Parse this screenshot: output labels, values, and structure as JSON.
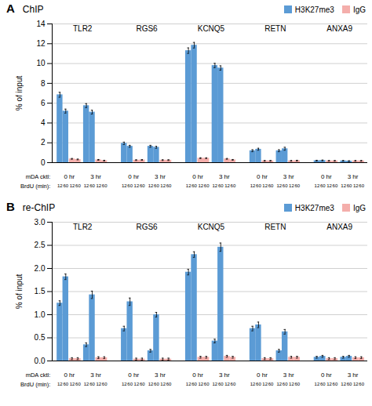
{
  "chart_data": [
    {
      "type": "bar",
      "title": "ChIP",
      "annotations": [
        "A",
        "mDA cktl:",
        "BrdU (min):"
      ],
      "ylabel": "% of input",
      "categories": [
        "TLR2",
        "RGS6",
        "KCNQ5",
        "RETN",
        "ANXA9"
      ],
      "groups": [
        "0 hr",
        "3 hr"
      ],
      "subcategories": [
        "12",
        "60"
      ],
      "series": [
        {
          "name": "H3K27me3",
          "color": "#5B9BD5",
          "values": [
            [
              6.85,
              5.2,
              5.75,
              5.1
            ],
            [
              1.95,
              1.65,
              1.65,
              1.55
            ],
            [
              11.3,
              11.85,
              9.8,
              9.55
            ],
            [
              1.2,
              1.35,
              1.2,
              1.4
            ],
            [
              0.2,
              0.22,
              0.18,
              0.15
            ]
          ],
          "errors": [
            [
              0.25,
              0.2,
              0.2,
              0.2
            ],
            [
              0.12,
              0.1,
              0.1,
              0.1
            ],
            [
              0.28,
              0.28,
              0.22,
              0.22
            ],
            [
              0.1,
              0.1,
              0.1,
              0.15
            ],
            [
              0.04,
              0.04,
              0.04,
              0.04
            ]
          ]
        },
        {
          "name": "IgG",
          "color": "#F4AEAB",
          "values": [
            [
              0.38,
              0.32,
              0.28,
              0.2
            ],
            [
              0.25,
              0.27,
              0.25,
              0.25
            ],
            [
              0.45,
              0.45,
              0.38,
              0.28
            ],
            [
              0.18,
              0.18,
              0.18,
              0.2
            ],
            [
              0.18,
              0.18,
              0.18,
              0.18
            ]
          ],
          "errors": [
            [
              0.04,
              0.04,
              0.04,
              0.04
            ],
            [
              0.04,
              0.04,
              0.04,
              0.04
            ],
            [
              0.04,
              0.04,
              0.04,
              0.04
            ],
            [
              0.04,
              0.04,
              0.04,
              0.04
            ],
            [
              0.04,
              0.04,
              0.04,
              0.04
            ]
          ]
        }
      ],
      "ylim": [
        0,
        14
      ],
      "yticks": [
        0,
        2,
        4,
        6,
        8,
        10,
        12,
        14
      ],
      "grid": true,
      "legend": "upper right"
    },
    {
      "type": "bar",
      "title": "re-ChIP",
      "annotations": [
        "B",
        "mDA cktl:",
        "BrdU (min):"
      ],
      "ylabel": "% of input",
      "categories": [
        "TLR2",
        "RGS6",
        "KCNQ5",
        "RETN",
        "ANXA9"
      ],
      "groups": [
        "0 hr",
        "3 hr"
      ],
      "subcategories": [
        "12",
        "60"
      ],
      "series": [
        {
          "name": "H3K27me3",
          "color": "#5B9BD5",
          "values": [
            [
              1.25,
              1.82,
              0.35,
              1.43
            ],
            [
              0.7,
              1.28,
              0.22,
              1.0
            ],
            [
              1.92,
              2.3,
              0.43,
              2.46
            ],
            [
              0.7,
              0.78,
              0.22,
              0.63
            ],
            [
              0.08,
              0.1,
              0.08,
              0.1
            ]
          ],
          "errors": [
            [
              0.05,
              0.06,
              0.04,
              0.08
            ],
            [
              0.05,
              0.08,
              0.03,
              0.05
            ],
            [
              0.06,
              0.06,
              0.04,
              0.09
            ],
            [
              0.05,
              0.06,
              0.03,
              0.05
            ],
            [
              0.02,
              0.02,
              0.02,
              0.02
            ]
          ]
        },
        {
          "name": "IgG",
          "color": "#F4AEAB",
          "values": [
            [
              0.05,
              0.05,
              0.07,
              0.07
            ],
            [
              0.04,
              0.04,
              0.04,
              0.04
            ],
            [
              0.08,
              0.08,
              0.1,
              0.08
            ],
            [
              0.05,
              0.05,
              0.08,
              0.08
            ],
            [
              0.05,
              0.05,
              0.07,
              0.07
            ]
          ],
          "errors": [
            [
              0.02,
              0.02,
              0.02,
              0.02
            ],
            [
              0.02,
              0.02,
              0.02,
              0.02
            ],
            [
              0.02,
              0.02,
              0.02,
              0.02
            ],
            [
              0.02,
              0.02,
              0.02,
              0.02
            ],
            [
              0.02,
              0.02,
              0.02,
              0.02
            ]
          ]
        }
      ],
      "ylim": [
        0,
        3.0
      ],
      "yticks": [
        {
          "value": 0,
          "label": "0.0"
        },
        0.5,
        {
          "value": 1.0,
          "label": "1.0"
        },
        1.5,
        {
          "value": 2.0,
          "label": "2.0"
        },
        2.5,
        {
          "value": 3.0,
          "label": "3.0"
        }
      ],
      "grid": true,
      "legend": "upper right"
    }
  ]
}
